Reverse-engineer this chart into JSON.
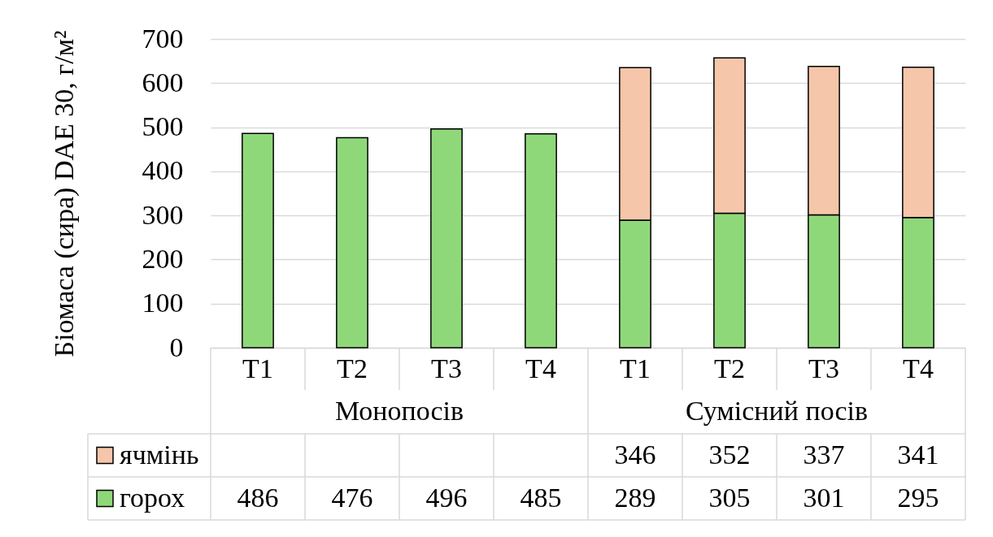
{
  "chart_data": {
    "type": "bar",
    "ylabel": "Біомаса (сира) DAE 30, г/м²",
    "categories": [
      "T1",
      "T2",
      "T3",
      "T4",
      "T1",
      "T2",
      "T3",
      "T4"
    ],
    "series": [
      {
        "name": "горох",
        "color": "#8fd87a",
        "values": [
          486,
          476,
          496,
          485,
          289,
          305,
          301,
          295
        ]
      },
      {
        "name": "ячмінь",
        "color": "#f5c6aa",
        "values": [
          null,
          null,
          null,
          null,
          346,
          352,
          337,
          341
        ]
      }
    ],
    "stacked": true,
    "ylim": [
      0,
      700
    ],
    "yticks": [
      0,
      100,
      200,
      300,
      400,
      500,
      600,
      700
    ],
    "grid": "y",
    "legend": "bottom left",
    "data_labels": true,
    "annotations": [
      "Монопосів",
      "Сумісний посів"
    ]
  }
}
